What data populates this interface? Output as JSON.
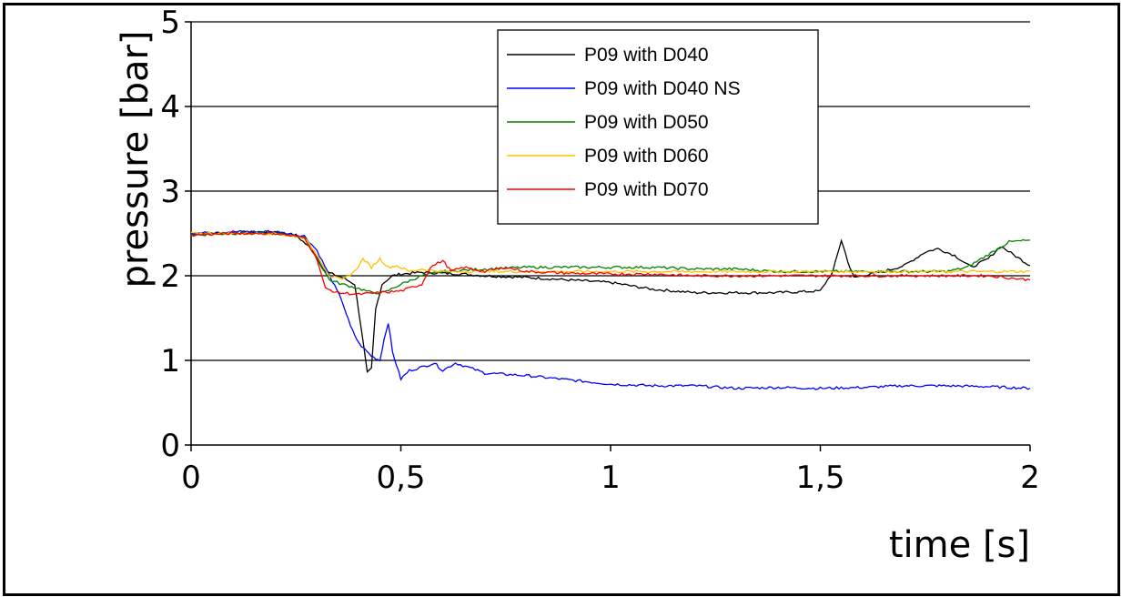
{
  "chart_data": {
    "type": "line",
    "title": "",
    "xlabel": "time [s]",
    "ylabel": "pressure [bar]",
    "xlim": [
      0,
      2
    ],
    "ylim": [
      0,
      5
    ],
    "x_ticks": [
      0,
      0.5,
      1,
      1.5,
      2
    ],
    "x_tick_labels": [
      "0",
      "0,5",
      "1",
      "1,5",
      "2"
    ],
    "y_ticks": [
      0,
      1,
      2,
      3,
      4,
      5
    ],
    "y_tick_labels": [
      "0",
      "1",
      "2",
      "3",
      "4",
      "5"
    ],
    "grid": "horizontal",
    "legend_position": "top-center",
    "series": [
      {
        "name": "P09 with D040",
        "color": "#000000",
        "points": [
          [
            0,
            2.5
          ],
          [
            0.1,
            2.51
          ],
          [
            0.2,
            2.52
          ],
          [
            0.25,
            2.48
          ],
          [
            0.29,
            2.3
          ],
          [
            0.32,
            2.05
          ],
          [
            0.36,
            1.98
          ],
          [
            0.39,
            1.9
          ],
          [
            0.405,
            1.4
          ],
          [
            0.42,
            0.85
          ],
          [
            0.43,
            0.9
          ],
          [
            0.44,
            1.6
          ],
          [
            0.455,
            1.9
          ],
          [
            0.48,
            2.0
          ],
          [
            0.5,
            2.02
          ],
          [
            0.55,
            2.04
          ],
          [
            0.6,
            2.03
          ],
          [
            0.65,
            2.02
          ],
          [
            0.7,
            2.0
          ],
          [
            0.8,
            1.98
          ],
          [
            0.9,
            1.95
          ],
          [
            1.0,
            1.92
          ],
          [
            1.05,
            1.88
          ],
          [
            1.1,
            1.84
          ],
          [
            1.2,
            1.8
          ],
          [
            1.3,
            1.8
          ],
          [
            1.4,
            1.8
          ],
          [
            1.5,
            1.82
          ],
          [
            1.53,
            2.05
          ],
          [
            1.55,
            2.42
          ],
          [
            1.57,
            2.1
          ],
          [
            1.58,
            1.98
          ],
          [
            1.6,
            2.0
          ],
          [
            1.65,
            2.05
          ],
          [
            1.7,
            2.12
          ],
          [
            1.75,
            2.28
          ],
          [
            1.78,
            2.32
          ],
          [
            1.82,
            2.24
          ],
          [
            1.86,
            2.1
          ],
          [
            1.9,
            2.2
          ],
          [
            1.93,
            2.35
          ],
          [
            1.96,
            2.25
          ],
          [
            2.0,
            2.12
          ]
        ]
      },
      {
        "name": "P09 with D040 NS",
        "color": "#0000ff",
        "points": [
          [
            0,
            2.5
          ],
          [
            0.1,
            2.52
          ],
          [
            0.2,
            2.52
          ],
          [
            0.27,
            2.47
          ],
          [
            0.3,
            2.3
          ],
          [
            0.33,
            2.0
          ],
          [
            0.36,
            1.7
          ],
          [
            0.38,
            1.4
          ],
          [
            0.4,
            1.2
          ],
          [
            0.43,
            1.05
          ],
          [
            0.45,
            1.0
          ],
          [
            0.46,
            1.25
          ],
          [
            0.47,
            1.45
          ],
          [
            0.48,
            1.1
          ],
          [
            0.5,
            0.78
          ],
          [
            0.52,
            0.88
          ],
          [
            0.55,
            0.92
          ],
          [
            0.58,
            0.97
          ],
          [
            0.6,
            0.88
          ],
          [
            0.63,
            0.97
          ],
          [
            0.66,
            0.92
          ],
          [
            0.7,
            0.85
          ],
          [
            0.8,
            0.82
          ],
          [
            0.9,
            0.77
          ],
          [
            1.0,
            0.72
          ],
          [
            1.1,
            0.7
          ],
          [
            1.2,
            0.7
          ],
          [
            1.3,
            0.67
          ],
          [
            1.4,
            0.68
          ],
          [
            1.5,
            0.67
          ],
          [
            1.6,
            0.68
          ],
          [
            1.7,
            0.7
          ],
          [
            1.8,
            0.7
          ],
          [
            1.9,
            0.69
          ],
          [
            2.0,
            0.67
          ]
        ]
      },
      {
        "name": "P09 with D050",
        "color": "#008000",
        "points": [
          [
            0,
            2.48
          ],
          [
            0.1,
            2.5
          ],
          [
            0.2,
            2.5
          ],
          [
            0.27,
            2.46
          ],
          [
            0.3,
            2.2
          ],
          [
            0.33,
            1.95
          ],
          [
            0.36,
            1.9
          ],
          [
            0.4,
            1.85
          ],
          [
            0.43,
            1.8
          ],
          [
            0.46,
            1.8
          ],
          [
            0.5,
            1.9
          ],
          [
            0.55,
            2.0
          ],
          [
            0.6,
            2.05
          ],
          [
            0.7,
            2.08
          ],
          [
            0.8,
            2.1
          ],
          [
            0.9,
            2.1
          ],
          [
            1.0,
            2.1
          ],
          [
            1.1,
            2.1
          ],
          [
            1.2,
            2.08
          ],
          [
            1.3,
            2.08
          ],
          [
            1.4,
            2.05
          ],
          [
            1.5,
            2.05
          ],
          [
            1.6,
            2.05
          ],
          [
            1.7,
            2.05
          ],
          [
            1.8,
            2.05
          ],
          [
            1.85,
            2.1
          ],
          [
            1.9,
            2.25
          ],
          [
            1.95,
            2.4
          ],
          [
            2.0,
            2.42
          ]
        ]
      },
      {
        "name": "P09 with D060",
        "color": "#ffc000",
        "points": [
          [
            0,
            2.5
          ],
          [
            0.1,
            2.5
          ],
          [
            0.2,
            2.5
          ],
          [
            0.27,
            2.45
          ],
          [
            0.3,
            2.25
          ],
          [
            0.33,
            2.0
          ],
          [
            0.36,
            1.95
          ],
          [
            0.39,
            2.05
          ],
          [
            0.41,
            2.2
          ],
          [
            0.43,
            2.1
          ],
          [
            0.45,
            2.2
          ],
          [
            0.47,
            2.1
          ],
          [
            0.49,
            2.12
          ],
          [
            0.52,
            2.05
          ],
          [
            0.55,
            2.08
          ],
          [
            0.6,
            2.05
          ],
          [
            0.7,
            2.05
          ],
          [
            0.8,
            2.05
          ],
          [
            0.9,
            2.05
          ],
          [
            1.0,
            2.05
          ],
          [
            1.2,
            2.05
          ],
          [
            1.4,
            2.05
          ],
          [
            1.6,
            2.05
          ],
          [
            1.8,
            2.05
          ],
          [
            1.9,
            2.05
          ],
          [
            2.0,
            2.05
          ]
        ]
      },
      {
        "name": "P09 with D070",
        "color": "#ff0000",
        "points": [
          [
            0,
            2.48
          ],
          [
            0.1,
            2.5
          ],
          [
            0.2,
            2.5
          ],
          [
            0.27,
            2.45
          ],
          [
            0.3,
            2.2
          ],
          [
            0.32,
            1.85
          ],
          [
            0.35,
            1.8
          ],
          [
            0.4,
            1.78
          ],
          [
            0.45,
            1.8
          ],
          [
            0.5,
            1.82
          ],
          [
            0.55,
            1.9
          ],
          [
            0.57,
            2.1
          ],
          [
            0.6,
            2.18
          ],
          [
            0.62,
            2.05
          ],
          [
            0.65,
            2.1
          ],
          [
            0.7,
            2.05
          ],
          [
            0.75,
            2.1
          ],
          [
            0.8,
            2.05
          ],
          [
            0.9,
            2.03
          ],
          [
            1.0,
            2.02
          ],
          [
            1.1,
            2.02
          ],
          [
            1.2,
            2.0
          ],
          [
            1.3,
            2.0
          ],
          [
            1.4,
            2.0
          ],
          [
            1.5,
            2.0
          ],
          [
            1.6,
            2.0
          ],
          [
            1.7,
            2.0
          ],
          [
            1.8,
            2.0
          ],
          [
            1.9,
            2.0
          ],
          [
            2.0,
            1.95
          ]
        ]
      }
    ]
  }
}
